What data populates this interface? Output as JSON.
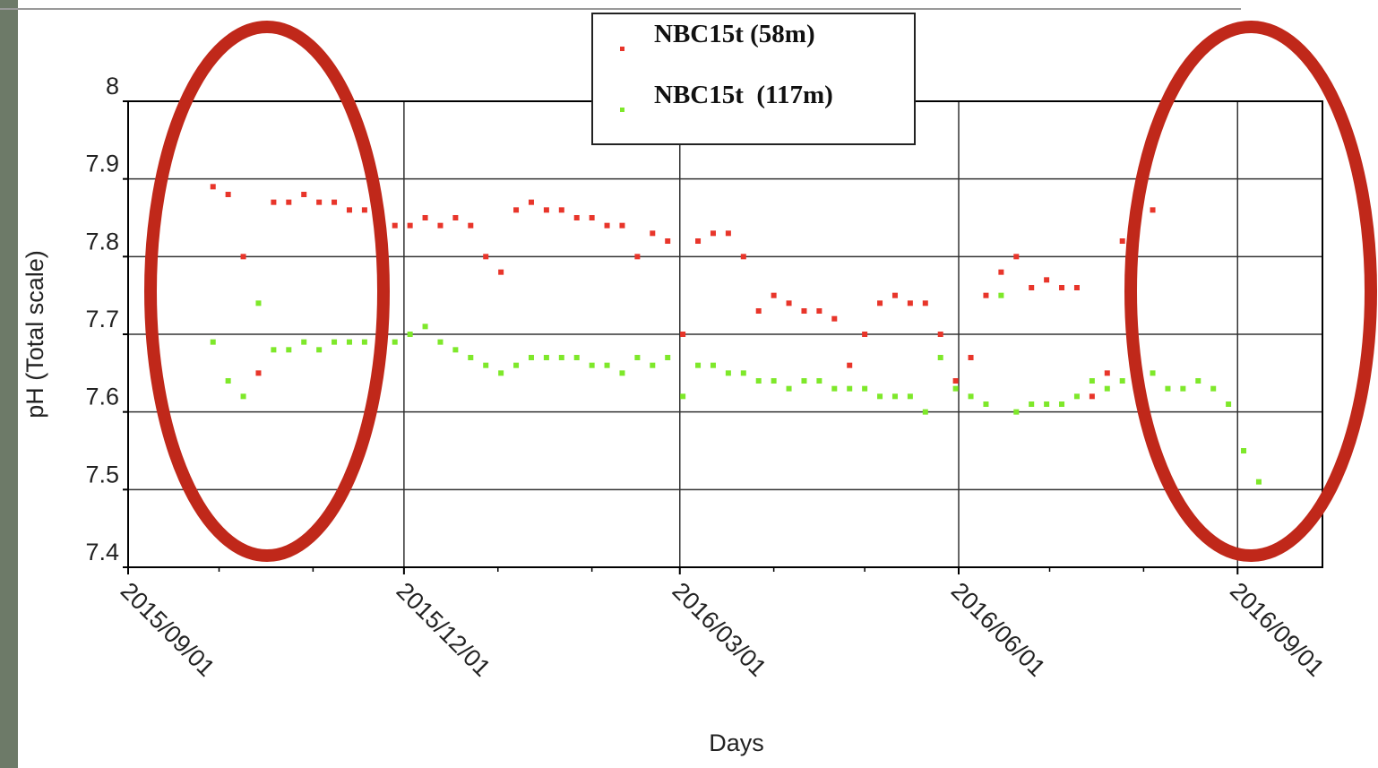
{
  "chart_data": {
    "type": "scatter",
    "ylabel": "pH (Total scale)",
    "xlabel": "Days",
    "xlim": [
      "2015/09/01",
      "2016/09/29"
    ],
    "ylim": [
      7.4,
      8
    ],
    "xticks": [
      "2015/09/01",
      "2015/12/01",
      "2016/03/01",
      "2016/06/01",
      "2016/09/01"
    ],
    "xminorticks": [
      "2015/10/01",
      "2015/11/01",
      "2016/01/01",
      "2016/02/01",
      "2016/04/01",
      "2016/05/01",
      "2016/07/01",
      "2016/08/01"
    ],
    "yticks": [
      7.4,
      7.5,
      7.6,
      7.7,
      7.8,
      7.9,
      8
    ],
    "grid": true,
    "x": [
      "2015/09/29",
      "2015/10/04",
      "2015/10/09",
      "2015/10/14",
      "2015/10/19",
      "2015/10/24",
      "2015/10/29",
      "2015/11/03",
      "2015/11/08",
      "2015/11/13",
      "2015/11/18",
      "2015/11/23",
      "2015/11/28",
      "2015/12/03",
      "2015/12/08",
      "2015/12/13",
      "2015/12/18",
      "2015/12/23",
      "2015/12/28",
      "2016/01/02",
      "2016/01/07",
      "2016/01/12",
      "2016/01/17",
      "2016/01/22",
      "2016/01/27",
      "2016/02/01",
      "2016/02/06",
      "2016/02/11",
      "2016/02/16",
      "2016/02/21",
      "2016/02/26",
      "2016/03/02",
      "2016/03/07",
      "2016/03/12",
      "2016/03/17",
      "2016/03/22",
      "2016/03/27",
      "2016/04/01",
      "2016/04/06",
      "2016/04/11",
      "2016/04/16",
      "2016/04/21",
      "2016/04/26",
      "2016/05/01",
      "2016/05/06",
      "2016/05/11",
      "2016/05/16",
      "2016/05/21",
      "2016/05/26",
      "2016/05/31",
      "2016/06/05",
      "2016/06/10",
      "2016/06/15",
      "2016/06/20",
      "2016/06/25",
      "2016/06/30",
      "2016/07/05",
      "2016/07/10",
      "2016/07/15",
      "2016/07/20",
      "2016/07/25",
      "2016/07/30",
      "2016/08/04",
      "2016/08/09",
      "2016/08/14",
      "2016/08/19",
      "2016/08/24",
      "2016/08/29",
      "2016/09/03",
      "2016/09/08"
    ],
    "series": [
      {
        "name": "NBC15t (58m)",
        "color": "#e8352a",
        "values": [
          7.89,
          7.88,
          7.8,
          7.65,
          7.87,
          7.87,
          7.88,
          7.87,
          7.87,
          7.86,
          7.86,
          7.85,
          7.84,
          7.84,
          7.85,
          7.84,
          7.85,
          7.84,
          7.8,
          7.78,
          7.86,
          7.87,
          7.86,
          7.86,
          7.85,
          7.85,
          7.84,
          7.84,
          7.8,
          7.83,
          7.82,
          7.7,
          7.82,
          7.83,
          7.83,
          7.8,
          7.73,
          7.75,
          7.74,
          7.73,
          7.73,
          7.72,
          7.66,
          7.7,
          7.74,
          7.75,
          7.74,
          7.74,
          7.7,
          7.64,
          7.67,
          7.75,
          7.78,
          7.8,
          7.76,
          7.77,
          7.76,
          7.76,
          7.62,
          7.65,
          7.82,
          7.63,
          7.86,
          null,
          null,
          null,
          null,
          null,
          null,
          null
        ]
      },
      {
        "name": "NBC15t  (117m)",
        "color": "#7ee82a",
        "values": [
          7.69,
          7.64,
          7.62,
          7.74,
          7.68,
          7.68,
          7.69,
          7.68,
          7.69,
          7.69,
          7.69,
          7.69,
          7.69,
          7.7,
          7.71,
          7.69,
          7.68,
          7.67,
          7.66,
          7.65,
          7.66,
          7.67,
          7.67,
          7.67,
          7.67,
          7.66,
          7.66,
          7.65,
          7.67,
          7.66,
          7.67,
          7.62,
          7.66,
          7.66,
          7.65,
          7.65,
          7.64,
          7.64,
          7.63,
          7.64,
          7.64,
          7.63,
          7.63,
          7.63,
          7.62,
          7.62,
          7.62,
          7.6,
          7.67,
          7.63,
          7.62,
          7.61,
          7.75,
          7.6,
          7.61,
          7.61,
          7.61,
          7.62,
          7.64,
          7.63,
          7.64,
          7.63,
          7.65,
          7.63,
          7.63,
          7.64,
          7.63,
          7.61,
          7.55,
          7.51
        ]
      }
    ]
  }
}
